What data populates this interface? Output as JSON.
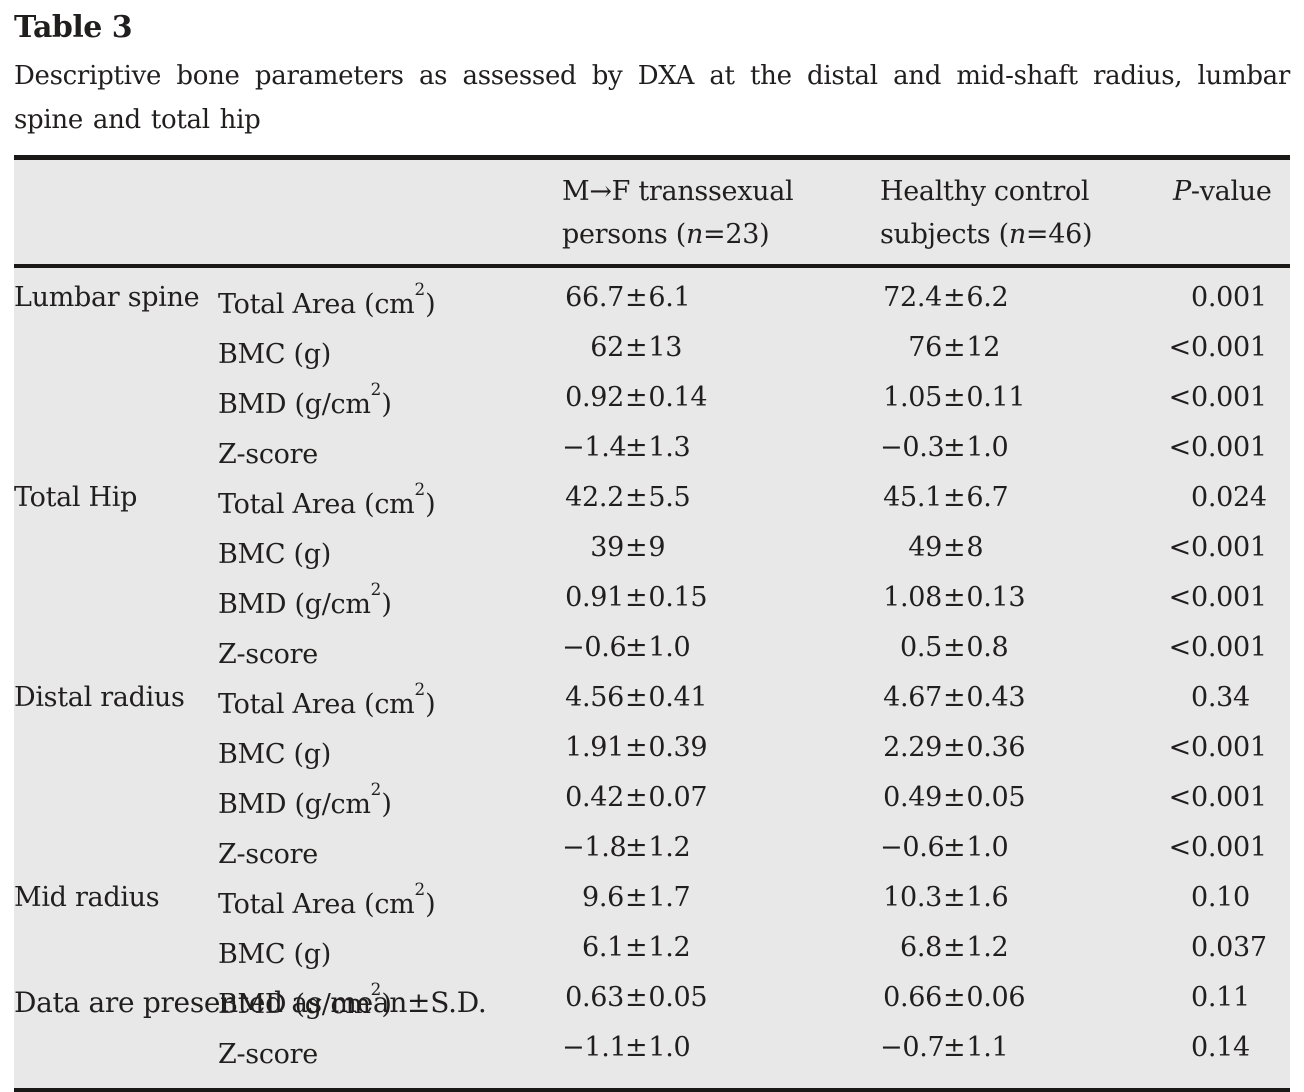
{
  "title": "Table 3",
  "caption": "Descriptive bone parameters as assessed by DXA at the distal and mid-shaft radius, lumbar spine and total hip",
  "footnote": "Data are presented as mean±S.D.",
  "colors": {
    "table_background": "#e8e8e8",
    "rule": "#1b1818",
    "text": "#211e1e"
  },
  "sym": {
    "pm": "±"
  },
  "header": {
    "group1": {
      "line1": "M→F transsexual",
      "l2pre": "persons (",
      "n": "n",
      "l2post": "=23)"
    },
    "group2": {
      "line1": "Healthy control",
      "l2pre": "subjects (",
      "n": "n",
      "l2post": "=46)"
    },
    "pcol": {
      "p": "P",
      "rest": "-value"
    }
  },
  "rows": [
    {
      "group": "Lumbar spine",
      "pre": "Total Area (cm",
      "sup": "2",
      "post": ")",
      "m1": "66.7",
      "s1": "6.1",
      "m2": "72.4",
      "s2": "6.2",
      "lt": "",
      "p": "0.001"
    },
    {
      "pre": "BMC (g)",
      "m1": "62",
      "s1": "13",
      "m2": "76",
      "s2": "12",
      "lt": "<",
      "p": "0.001"
    },
    {
      "pre": "BMD (g/cm",
      "sup": "2",
      "post": ")",
      "m1": "0.92",
      "s1": "0.14",
      "m2": "1.05",
      "s2": "0.11",
      "lt": "<",
      "p": "0.001"
    },
    {
      "pre": "Z-score",
      "m1": "−1.4",
      "s1": "1.3",
      "m2": "−0.3",
      "s2": "1.0",
      "lt": "<",
      "p": "0.001"
    },
    {
      "group": "Total Hip",
      "pre": "Total Area (cm",
      "sup": "2",
      "post": ")",
      "m1": "42.2",
      "s1": "5.5",
      "m2": "45.1",
      "s2": "6.7",
      "lt": "",
      "p": "0.024"
    },
    {
      "pre": "BMC (g)",
      "m1": "39",
      "s1": "9",
      "m2": "49",
      "s2": "8",
      "lt": "<",
      "p": "0.001"
    },
    {
      "pre": "BMD (g/cm",
      "sup": "2",
      "post": ")",
      "m1": "0.91",
      "s1": "0.15",
      "m2": "1.08",
      "s2": "0.13",
      "lt": "<",
      "p": "0.001"
    },
    {
      "pre": "Z-score",
      "m1": "−0.6",
      "s1": "1.0",
      "m2": "0.5",
      "s2": "0.8",
      "lt": "<",
      "p": "0.001"
    },
    {
      "group": "Distal radius",
      "pre": "Total Area (cm",
      "sup": "2",
      "post": ")",
      "m1": "4.56",
      "s1": "0.41",
      "m2": "4.67",
      "s2": "0.43",
      "lt": "",
      "p": "0.34"
    },
    {
      "pre": "BMC (g)",
      "m1": "1.91",
      "s1": "0.39",
      "m2": "2.29",
      "s2": "0.36",
      "lt": "<",
      "p": "0.001"
    },
    {
      "pre": "BMD (g/cm",
      "sup": "2",
      "post": ")",
      "m1": "0.42",
      "s1": "0.07",
      "m2": "0.49",
      "s2": "0.05",
      "lt": "<",
      "p": "0.001"
    },
    {
      "pre": "Z-score",
      "m1": "−1.8",
      "s1": "1.2",
      "m2": "−0.6",
      "s2": "1.0",
      "lt": "<",
      "p": "0.001"
    },
    {
      "group": "Mid radius",
      "pre": "Total Area (cm",
      "sup": "2",
      "post": ")",
      "m1": "9.6",
      "s1": "1.7",
      "m2": "10.3",
      "s2": "1.6",
      "lt": "",
      "p": "0.10"
    },
    {
      "pre": "BMC (g)",
      "m1": "6.1",
      "s1": "1.2",
      "m2": "6.8",
      "s2": "1.2",
      "lt": "",
      "p": "0.037"
    },
    {
      "pre": "BMD (g/cm",
      "sup": "2",
      "post": ")",
      "m1": "0.63",
      "s1": "0.05",
      "m2": "0.66",
      "s2": "0.06",
      "lt": "",
      "p": "0.11"
    },
    {
      "pre": "Z-score",
      "m1": "−1.1",
      "s1": "1.0",
      "m2": "−0.7",
      "s2": "1.1",
      "lt": "",
      "p": "0.14"
    }
  ]
}
